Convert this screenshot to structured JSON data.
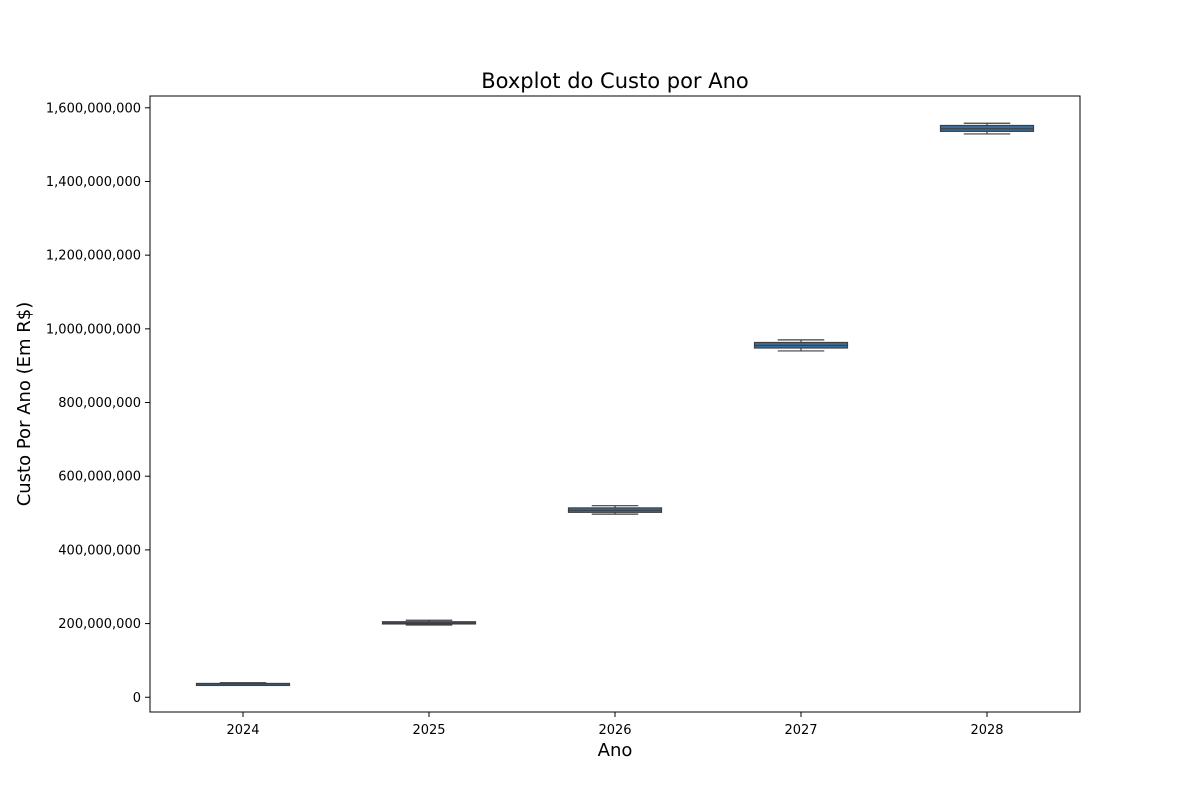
{
  "chart_data": {
    "type": "boxplot",
    "title": "Boxplot do Custo por Ano",
    "xlabel": "Ano",
    "ylabel": "Custo Por Ano (Em R$)",
    "categories": [
      "2024",
      "2025",
      "2026",
      "2027",
      "2028"
    ],
    "boxes": [
      {
        "category": "2024",
        "whisker_low": 34000000,
        "q1": 35500000,
        "median": 36500000,
        "q3": 37500000,
        "whisker_high": 39500000
      },
      {
        "category": "2025",
        "whisker_low": 196000000,
        "q1": 199000000,
        "median": 201500000,
        "q3": 205000000,
        "whisker_high": 209000000
      },
      {
        "category": "2026",
        "whisker_low": 497000000,
        "q1": 502000000,
        "median": 507500000,
        "q3": 514000000,
        "whisker_high": 520000000
      },
      {
        "category": "2027",
        "whisker_low": 940000000,
        "q1": 948000000,
        "median": 955000000,
        "q3": 963000000,
        "whisker_high": 970000000
      },
      {
        "category": "2028",
        "whisker_low": 1529000000,
        "q1": 1536000000,
        "median": 1543000000,
        "q3": 1552000000,
        "whisker_high": 1558000000
      }
    ],
    "ylim": [
      -40000000,
      1632000000
    ],
    "yticks": [
      0,
      200000000,
      400000000,
      600000000,
      800000000,
      1000000000,
      1200000000,
      1400000000,
      1600000000
    ],
    "ytick_labels": [
      "0",
      "200,000,000",
      "400,000,000",
      "600,000,000",
      "800,000,000",
      "1,000,000,000",
      "1,200,000,000",
      "1,400,000,000",
      "1,600,000,000"
    ],
    "grid": false,
    "legend": "none",
    "colors": {
      "box_fill": "#3a6f9d",
      "box_edge": "#3f3f3f",
      "whisker": "#3f3f3f",
      "median": "#3f3f3f",
      "axes": "#000000"
    }
  }
}
